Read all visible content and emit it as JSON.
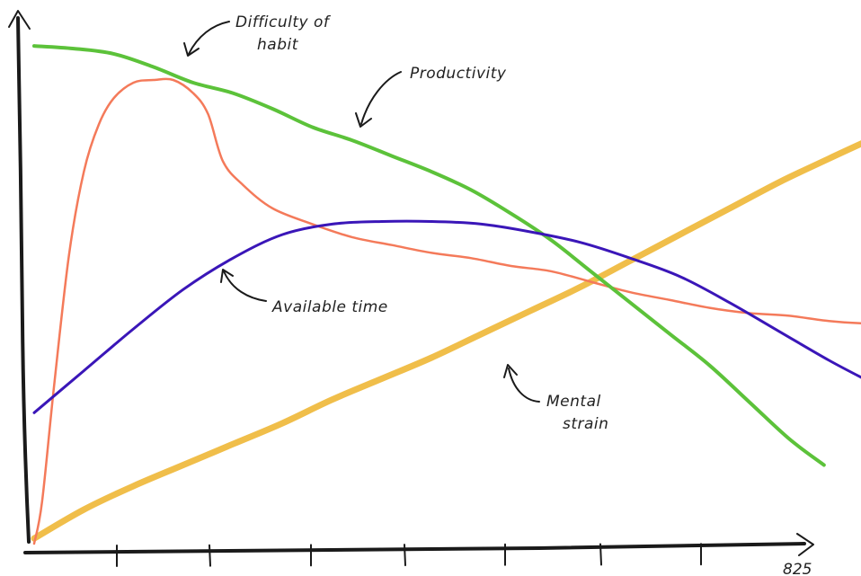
{
  "chart_data": {
    "type": "line",
    "title": "",
    "xlabel": "",
    "ylabel": "",
    "xlim": [
      0,
      825
    ],
    "ylim": [
      0,
      100
    ],
    "x_tick_labels": [
      "825"
    ],
    "grid": false,
    "legend": "none",
    "series": [
      {
        "name": "Productivity",
        "color": "#5cc23a",
        "width": 4,
        "x": [
          0,
          40,
          80,
          120,
          160,
          200,
          240,
          280,
          320,
          360,
          400,
          440,
          480,
          520,
          560,
          600,
          640,
          680,
          720,
          760,
          795
        ],
        "y": [
          95,
          94.5,
          93.5,
          91,
          88,
          86,
          83,
          79.5,
          77,
          74,
          71,
          67.5,
          63,
          58,
          52,
          46,
          40,
          34,
          27,
          20,
          15
        ]
      },
      {
        "name": "Difficulty of habit",
        "color": "#f47a5a",
        "width": 2.5,
        "x": [
          0,
          8,
          20,
          35,
          50,
          65,
          80,
          100,
          120,
          140,
          160,
          175,
          190,
          210,
          240,
          280,
          320,
          360,
          400,
          440,
          480,
          520,
          560,
          600,
          640,
          680,
          720,
          760,
          800,
          840,
          860
        ],
        "y": [
          0,
          8,
          30,
          55,
          71,
          80,
          85,
          88,
          88.5,
          88.5,
          86,
          82,
          73,
          68.5,
          64,
          61,
          58.5,
          57,
          55.5,
          54.5,
          53,
          52,
          50,
          48,
          46.5,
          45,
          44,
          43.5,
          42.5,
          42,
          42
        ]
      },
      {
        "name": "Available time",
        "color": "#3a16b8",
        "width": 3,
        "x": [
          0,
          50,
          100,
          150,
          200,
          250,
          300,
          350,
          400,
          450,
          500,
          550,
          600,
          650,
          700,
          750,
          800,
          840
        ],
        "y": [
          25,
          33,
          41,
          48.5,
          54.5,
          59,
          61,
          61.5,
          61.5,
          61,
          59.5,
          57.5,
          54.5,
          51,
          46,
          40.5,
          35,
          31
        ]
      },
      {
        "name": "Mental strain",
        "color": "#f0be4a",
        "width": 7,
        "x": [
          0,
          50,
          100,
          150,
          200,
          250,
          300,
          350,
          400,
          450,
          500,
          550,
          600,
          650,
          700,
          750,
          800,
          840
        ],
        "y": [
          1,
          6.5,
          11,
          15,
          19,
          23,
          27.5,
          31.5,
          35.5,
          40,
          44.5,
          49,
          54,
          59,
          64,
          69,
          73.5,
          77
        ]
      }
    ],
    "annotations": [
      {
        "lines": [
          "Difficulty of",
          "habit"
        ],
        "target": "Difficulty of habit"
      },
      {
        "lines": [
          "Productivity"
        ],
        "target": "Productivity"
      },
      {
        "lines": [
          "Available time"
        ],
        "target": "Available time"
      },
      {
        "lines": [
          "Mental",
          "strain"
        ],
        "target": "Mental strain"
      }
    ]
  }
}
